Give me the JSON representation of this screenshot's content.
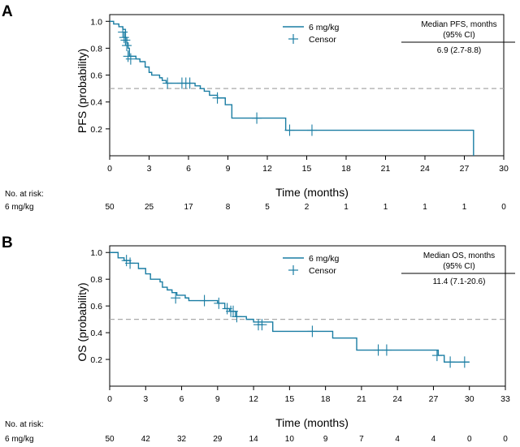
{
  "colors": {
    "curve": "#1a7da3",
    "median_line": "#aaaaaa",
    "axis": "#000000"
  },
  "chart_data": [
    {
      "type": "line",
      "panel_label": "A",
      "ylabel": "PFS (probability)",
      "xlabel": "Time (months)",
      "xlim": [
        0,
        30
      ],
      "ylim": [
        0,
        1.05
      ],
      "xticks": [
        "0",
        "3",
        "6",
        "9",
        "12",
        "15",
        "18",
        "21",
        "24",
        "27",
        "30"
      ],
      "yticks": [
        "0.2",
        "0.4",
        "0.6",
        "0.8",
        "1.0"
      ],
      "reference_line_y": 0.5,
      "legend": {
        "series_label": "6 mg/kg",
        "censor_label": "Censor"
      },
      "median_box": {
        "header_line1": "Median PFS, months",
        "header_line2": "(95% CI)",
        "value": "6.9 (2.7-8.8)"
      },
      "series": [
        {
          "name": "6 mg/kg",
          "x": [
            0,
            0.3,
            0.7,
            1.0,
            1.2,
            1.3,
            1.4,
            1.5,
            2.0,
            2.3,
            2.7,
            3.0,
            3.2,
            3.8,
            4.0,
            4.3,
            5.0,
            6.5,
            6.9,
            7.2,
            7.6,
            8.2,
            8.8,
            9.3,
            10.0,
            13.4,
            27.7
          ],
          "y": [
            1.0,
            0.98,
            0.96,
            0.94,
            0.88,
            0.84,
            0.8,
            0.74,
            0.72,
            0.7,
            0.66,
            0.62,
            0.6,
            0.58,
            0.56,
            0.54,
            0.54,
            0.52,
            0.5,
            0.48,
            0.45,
            0.43,
            0.38,
            0.28,
            0.28,
            0.19,
            0.0
          ],
          "censor_x": [
            1.0,
            1.1,
            1.2,
            1.3,
            1.4,
            1.6,
            4.4,
            5.5,
            5.8,
            6.1,
            8.2,
            11.2,
            13.7,
            15.4
          ],
          "censor_y": [
            0.92,
            0.88,
            0.86,
            0.82,
            0.74,
            0.72,
            0.54,
            0.54,
            0.54,
            0.54,
            0.43,
            0.28,
            0.19,
            0.19
          ]
        }
      ],
      "risk_table": {
        "header": "No. at risk:",
        "row_label": "6 mg/kg",
        "times": [
          0,
          3,
          6,
          9,
          12,
          15,
          18,
          21,
          24,
          27,
          30
        ],
        "values": [
          "50",
          "25",
          "17",
          "8",
          "5",
          "2",
          "1",
          "1",
          "1",
          "1",
          "0"
        ]
      }
    },
    {
      "type": "line",
      "panel_label": "B",
      "ylabel": "OS (probability)",
      "xlabel": "Time (months)",
      "xlim": [
        0,
        33
      ],
      "ylim": [
        0,
        1.05
      ],
      "xticks": [
        "0",
        "3",
        "6",
        "9",
        "12",
        "15",
        "18",
        "21",
        "24",
        "27",
        "30",
        "33"
      ],
      "yticks": [
        "0.2",
        "0.4",
        "0.6",
        "0.8",
        "1.0"
      ],
      "reference_line_y": 0.5,
      "legend": {
        "series_label": "6 mg/kg",
        "censor_label": "Censor"
      },
      "median_box": {
        "header_line1": "Median OS, months",
        "header_line2": "(95% CI)",
        "value": "11.4 (7.1-20.6)"
      },
      "series": [
        {
          "name": "6 mg/kg",
          "x": [
            0,
            0.7,
            1.2,
            1.7,
            2.4,
            3.0,
            3.4,
            4.2,
            4.4,
            4.8,
            5.2,
            5.6,
            6.3,
            6.6,
            7.2,
            9.0,
            9.6,
            10.0,
            10.5,
            11.4,
            12.0,
            13.6,
            18.0,
            18.6,
            20.6,
            27.4,
            27.9,
            30.0
          ],
          "y": [
            1.0,
            0.96,
            0.94,
            0.92,
            0.88,
            0.84,
            0.8,
            0.78,
            0.74,
            0.72,
            0.7,
            0.68,
            0.66,
            0.64,
            0.64,
            0.62,
            0.58,
            0.56,
            0.52,
            0.5,
            0.48,
            0.41,
            0.41,
            0.36,
            0.27,
            0.23,
            0.18,
            0.18
          ],
          "censor_x": [
            1.4,
            1.7,
            5.5,
            7.9,
            9.1,
            9.8,
            10.1,
            10.3,
            10.6,
            12.4,
            12.7,
            16.9,
            22.4,
            23.1,
            27.3,
            28.4,
            29.6
          ],
          "censor_y": [
            0.94,
            0.92,
            0.66,
            0.64,
            0.62,
            0.58,
            0.56,
            0.56,
            0.52,
            0.46,
            0.46,
            0.41,
            0.27,
            0.27,
            0.23,
            0.18,
            0.18
          ]
        }
      ],
      "risk_table": {
        "header": "No. at risk:",
        "row_label": "6 mg/kg",
        "times": [
          0,
          3,
          6,
          9,
          12,
          15,
          18,
          21,
          24,
          27,
          30,
          33
        ],
        "values": [
          "50",
          "42",
          "32",
          "29",
          "14",
          "10",
          "9",
          "7",
          "4",
          "4",
          "0",
          "0"
        ]
      }
    }
  ]
}
